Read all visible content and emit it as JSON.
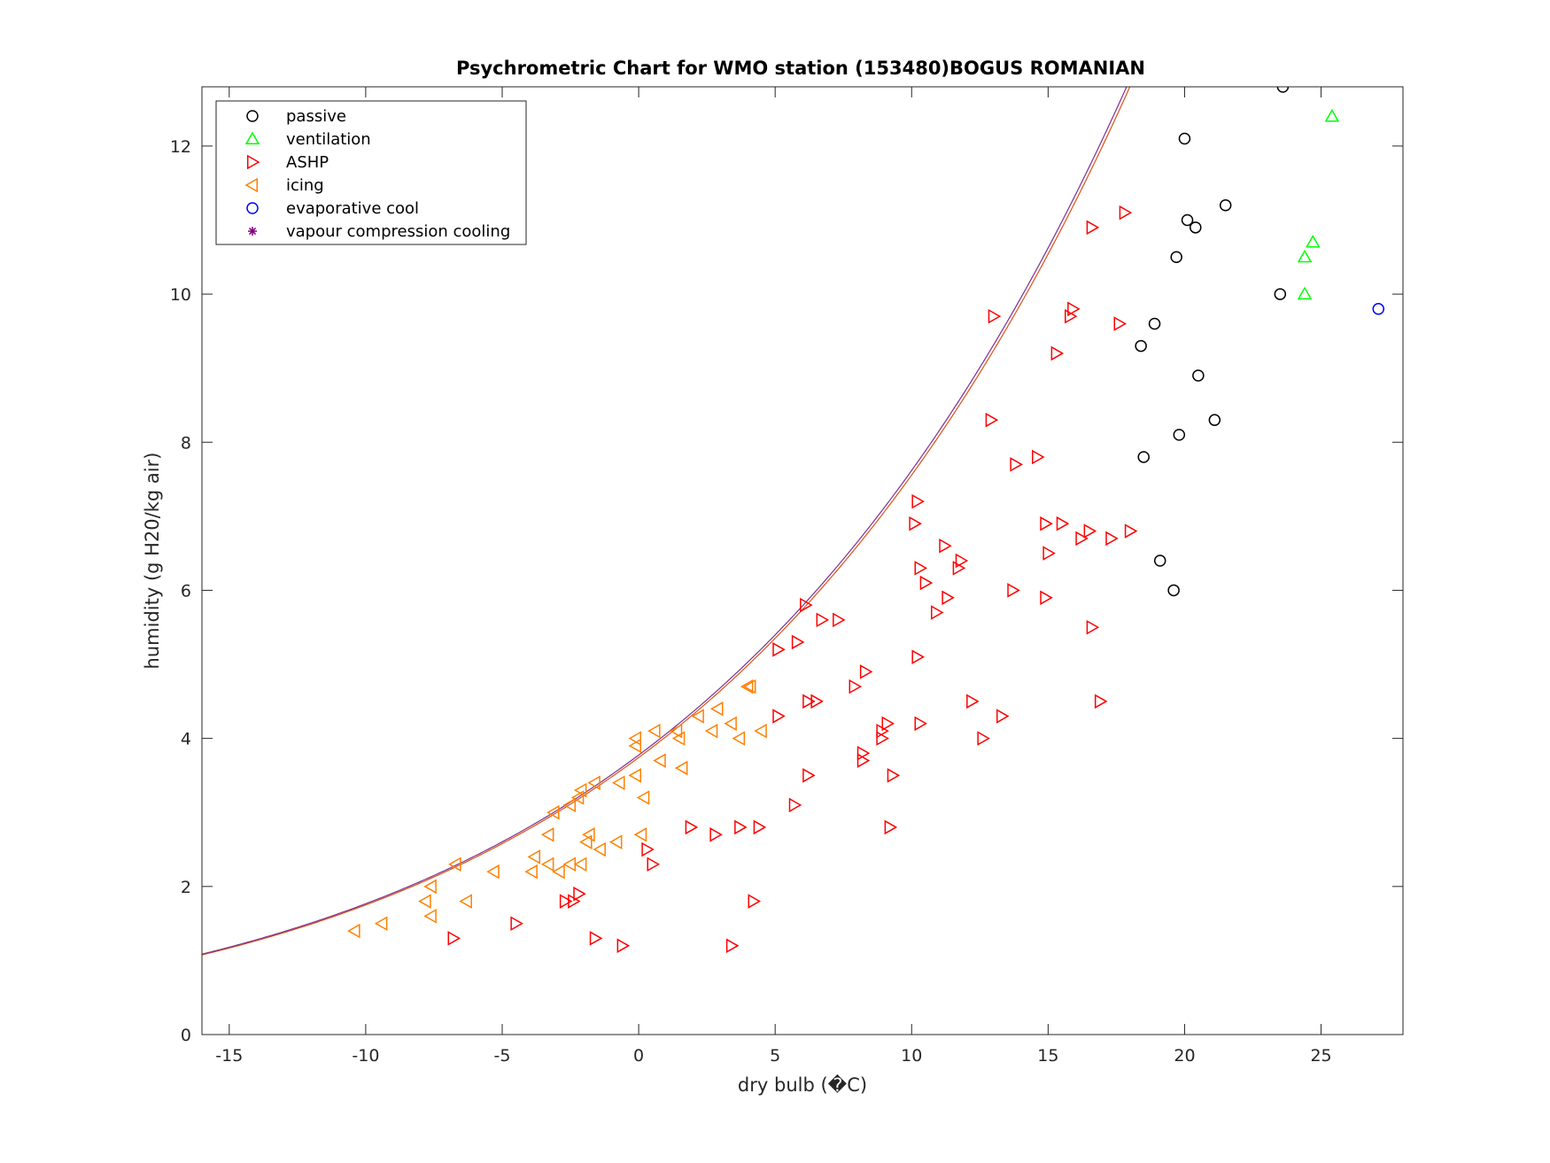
{
  "chart_data": {
    "type": "scatter",
    "title": "Psychrometric Chart for WMO station (153480)BOGUS ROMANIAN",
    "xlabel": "dry bulb (�C)",
    "ylabel": "humidity (g H20/kg air)",
    "xlim": [
      -16,
      28
    ],
    "ylim": [
      0,
      12.8
    ],
    "xticks": [
      -15,
      -10,
      -5,
      0,
      5,
      10,
      15,
      20,
      25
    ],
    "yticks": [
      0,
      2,
      4,
      6,
      8,
      10,
      12
    ],
    "legend_position": "top-left",
    "grid": false,
    "series": [
      {
        "name": "passive",
        "marker": "circle",
        "color": "#000000",
        "points": [
          [
            23.6,
            12.8
          ],
          [
            20.0,
            12.1
          ],
          [
            21.5,
            11.2
          ],
          [
            20.1,
            11.0
          ],
          [
            20.4,
            10.9
          ],
          [
            19.7,
            10.5
          ],
          [
            23.5,
            10.0
          ],
          [
            18.9,
            9.6
          ],
          [
            18.4,
            9.3
          ],
          [
            20.5,
            8.9
          ],
          [
            21.1,
            8.3
          ],
          [
            19.8,
            8.1
          ],
          [
            18.5,
            7.8
          ],
          [
            19.1,
            6.4
          ],
          [
            19.6,
            6.0
          ]
        ]
      },
      {
        "name": "ventilation",
        "marker": "triangle-up",
        "color": "#00ff00",
        "points": [
          [
            25.4,
            12.4
          ],
          [
            24.7,
            10.7
          ],
          [
            24.4,
            10.5
          ],
          [
            24.4,
            10.0
          ]
        ]
      },
      {
        "name": "ASHP",
        "marker": "triangle-right",
        "color": "#ff0000",
        "points": [
          [
            17.8,
            11.1
          ],
          [
            16.6,
            10.9
          ],
          [
            15.9,
            9.8
          ],
          [
            15.8,
            9.7
          ],
          [
            13.0,
            9.7
          ],
          [
            17.6,
            9.6
          ],
          [
            15.3,
            9.2
          ],
          [
            12.9,
            8.3
          ],
          [
            14.6,
            7.8
          ],
          [
            13.8,
            7.7
          ],
          [
            10.2,
            7.2
          ],
          [
            10.1,
            6.9
          ],
          [
            15.5,
            6.9
          ],
          [
            14.9,
            6.9
          ],
          [
            16.5,
            6.8
          ],
          [
            18.0,
            6.8
          ],
          [
            16.2,
            6.7
          ],
          [
            17.3,
            6.7
          ],
          [
            11.2,
            6.6
          ],
          [
            15.0,
            6.5
          ],
          [
            11.8,
            6.4
          ],
          [
            11.7,
            6.3
          ],
          [
            10.3,
            6.3
          ],
          [
            10.5,
            6.1
          ],
          [
            13.7,
            6.0
          ],
          [
            11.3,
            5.9
          ],
          [
            14.9,
            5.9
          ],
          [
            6.1,
            5.8
          ],
          [
            10.9,
            5.7
          ],
          [
            7.3,
            5.6
          ],
          [
            6.7,
            5.6
          ],
          [
            16.6,
            5.5
          ],
          [
            5.8,
            5.3
          ],
          [
            5.1,
            5.2
          ],
          [
            10.2,
            5.1
          ],
          [
            8.3,
            4.9
          ],
          [
            7.9,
            4.7
          ],
          [
            16.9,
            4.5
          ],
          [
            6.5,
            4.5
          ],
          [
            6.2,
            4.5
          ],
          [
            12.2,
            4.5
          ],
          [
            13.3,
            4.3
          ],
          [
            5.1,
            4.3
          ],
          [
            9.1,
            4.2
          ],
          [
            10.3,
            4.2
          ],
          [
            8.9,
            4.1
          ],
          [
            8.9,
            4.0
          ],
          [
            12.6,
            4.0
          ],
          [
            8.2,
            3.8
          ],
          [
            8.2,
            3.7
          ],
          [
            9.3,
            3.5
          ],
          [
            6.2,
            3.5
          ],
          [
            5.7,
            3.1
          ],
          [
            9.2,
            2.8
          ],
          [
            4.4,
            2.8
          ],
          [
            3.7,
            2.8
          ],
          [
            1.9,
            2.8
          ],
          [
            2.8,
            2.7
          ],
          [
            0.3,
            2.5
          ],
          [
            0.5,
            2.3
          ],
          [
            -2.2,
            1.9
          ],
          [
            -2.4,
            1.8
          ],
          [
            -2.7,
            1.8
          ],
          [
            4.2,
            1.8
          ],
          [
            -4.5,
            1.5
          ],
          [
            -6.8,
            1.3
          ],
          [
            -1.6,
            1.3
          ],
          [
            -0.6,
            1.2
          ],
          [
            3.4,
            1.2
          ]
        ]
      },
      {
        "name": "icing",
        "marker": "triangle-left",
        "color": "#ff8000",
        "points": [
          [
            4.0,
            4.7
          ],
          [
            4.1,
            4.7
          ],
          [
            2.9,
            4.4
          ],
          [
            2.2,
            4.3
          ],
          [
            3.4,
            4.2
          ],
          [
            1.4,
            4.1
          ],
          [
            0.6,
            4.1
          ],
          [
            2.7,
            4.1
          ],
          [
            4.5,
            4.1
          ],
          [
            -0.1,
            4.0
          ],
          [
            1.5,
            4.0
          ],
          [
            3.7,
            4.0
          ],
          [
            -0.1,
            3.9
          ],
          [
            0.8,
            3.7
          ],
          [
            1.6,
            3.6
          ],
          [
            -0.1,
            3.5
          ],
          [
            -1.6,
            3.4
          ],
          [
            -0.7,
            3.4
          ],
          [
            -2.1,
            3.3
          ],
          [
            -2.2,
            3.2
          ],
          [
            0.2,
            3.2
          ],
          [
            -2.5,
            3.1
          ],
          [
            -3.1,
            3.0
          ],
          [
            0.1,
            2.7
          ],
          [
            -1.8,
            2.7
          ],
          [
            -3.3,
            2.7
          ],
          [
            -0.8,
            2.6
          ],
          [
            -1.9,
            2.6
          ],
          [
            -1.4,
            2.5
          ],
          [
            -3.8,
            2.4
          ],
          [
            -2.5,
            2.3
          ],
          [
            -3.3,
            2.3
          ],
          [
            -6.7,
            2.3
          ],
          [
            -2.1,
            2.3
          ],
          [
            -3.9,
            2.2
          ],
          [
            -5.3,
            2.2
          ],
          [
            -2.9,
            2.2
          ],
          [
            -7.6,
            2.0
          ],
          [
            -7.8,
            1.8
          ],
          [
            -6.3,
            1.8
          ],
          [
            -7.6,
            1.6
          ],
          [
            -9.4,
            1.5
          ],
          [
            -10.4,
            1.4
          ]
        ]
      },
      {
        "name": "evaporative cool",
        "marker": "circle",
        "color": "#0000ff",
        "points": [
          [
            27.1,
            9.8
          ]
        ]
      },
      {
        "name": "vapour compression cooling",
        "marker": "asterisk",
        "color": "#800080",
        "points": []
      }
    ],
    "curves": [
      {
        "color": "#d95319",
        "offset": -0.12
      },
      {
        "color": "#7e2f8e",
        "offset": 0.0
      }
    ]
  }
}
